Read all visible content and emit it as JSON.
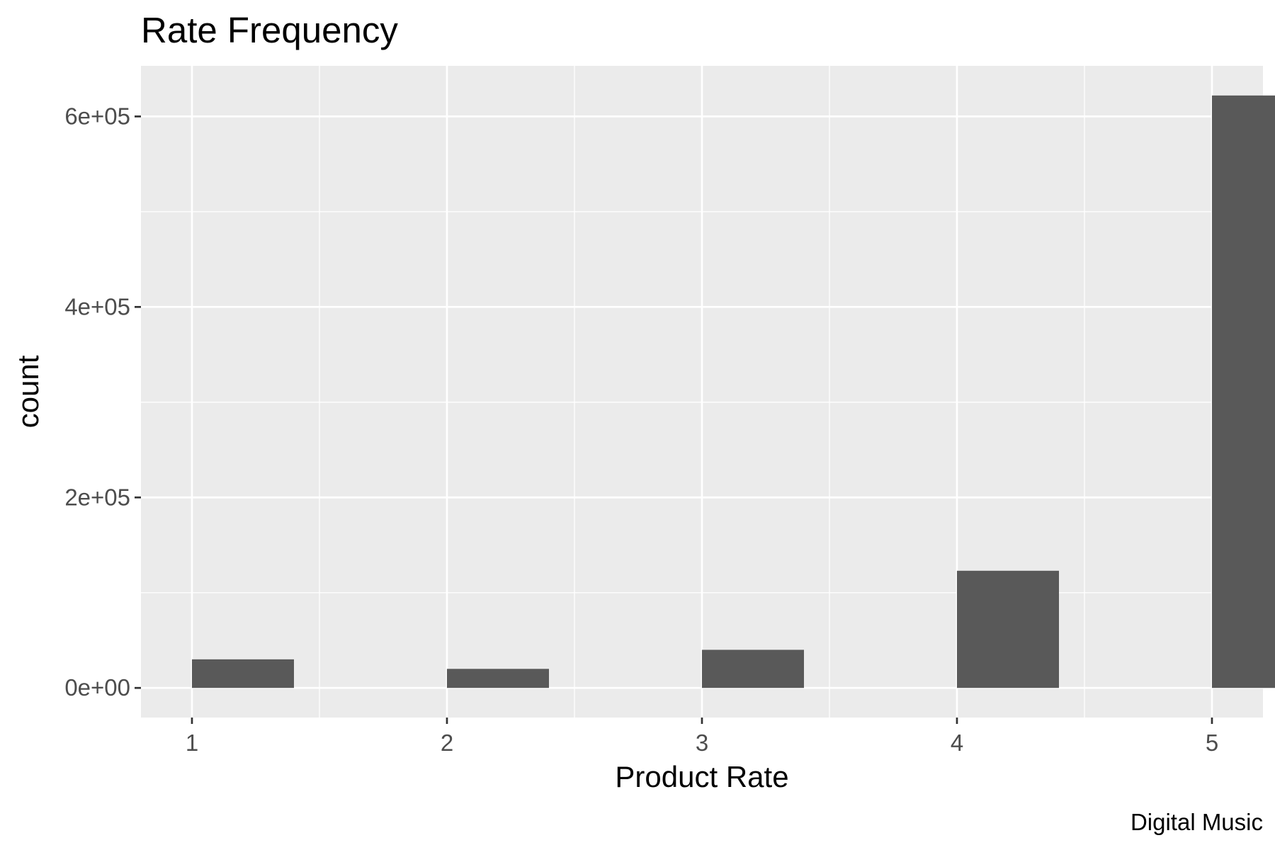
{
  "chart_data": {
    "type": "bar",
    "title": "Rate Frequency",
    "xlabel": "Product Rate",
    "ylabel": "count",
    "caption": "Digital Music",
    "categories": [
      "1",
      "2",
      "3",
      "4",
      "5"
    ],
    "x": [
      1,
      2,
      3,
      4,
      5
    ],
    "values": [
      30000,
      20000,
      40000,
      123000,
      622000
    ],
    "xlim": [
      0.8,
      5.2
    ],
    "ylim": [
      -31100,
      653100
    ],
    "x_ticks": [
      1,
      2,
      3,
      4,
      5
    ],
    "x_tick_labels": [
      "1",
      "2",
      "3",
      "4",
      "5"
    ],
    "y_ticks": [
      0,
      200000,
      400000,
      600000
    ],
    "y_tick_labels": [
      "0e+00",
      "2e+05",
      "4e+05",
      "6e+05"
    ],
    "bar_width": 0.4,
    "grid": true,
    "legend": "none",
    "colors": {
      "panel_background": "#ebebeb",
      "grid": "#ffffff",
      "bar_fill": "#595959",
      "tick_label": "#4d4d4d",
      "text": "#000000"
    }
  }
}
